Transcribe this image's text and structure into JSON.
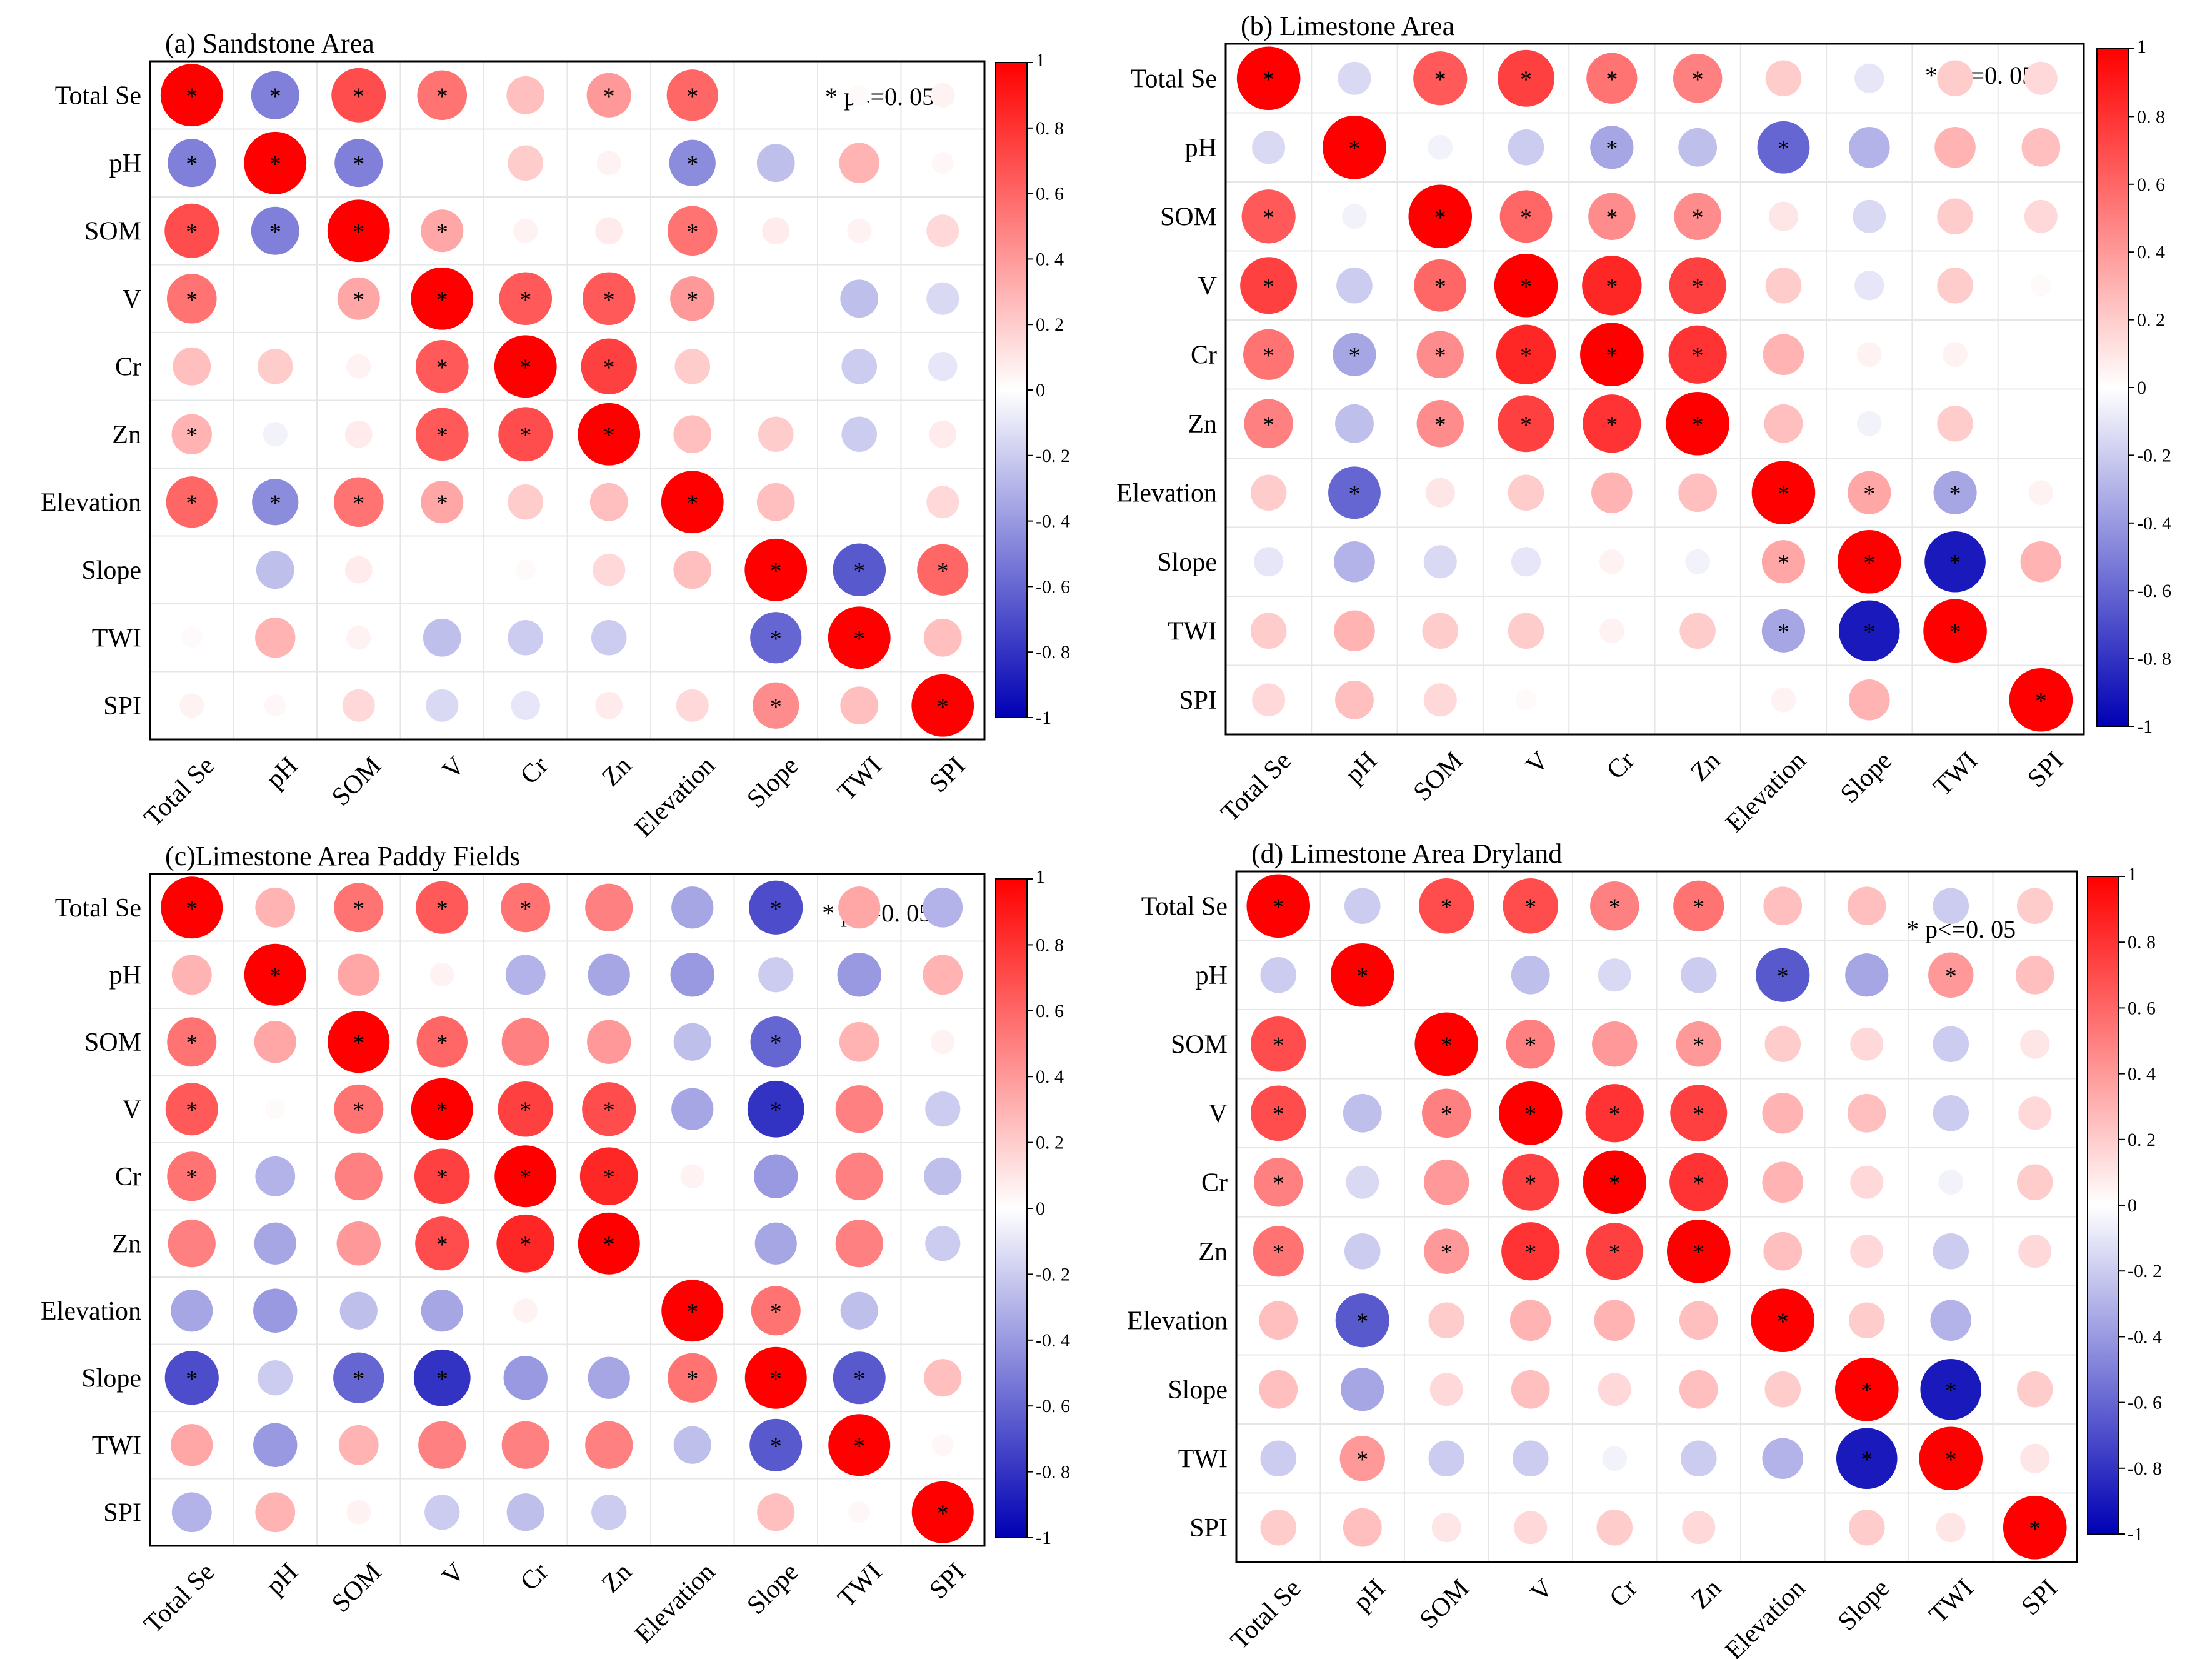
{
  "colors": {
    "positive": "#ff0000",
    "negative": "#0000b4",
    "neutral": "#ffffff",
    "marker": "#000000"
  },
  "chart_data": [
    {
      "type": "heatmap",
      "title": "(a) Sandstone Area",
      "legend_text": "* p<=0. 05",
      "variables": [
        "Total Se",
        "pH",
        "SOM",
        "V",
        "Cr",
        "Zn",
        "Elevation",
        "Slope",
        "TWI",
        "SPI"
      ],
      "colorbar": {
        "range": [
          -1,
          1
        ],
        "ticks": [
          "1",
          "0. 8",
          "0. 6",
          "0. 4",
          "0. 2",
          "0",
          "-0. 2",
          "-0. 4",
          "-0. 6",
          "-0. 8",
          "-1"
        ]
      },
      "matrix": [
        [
          1.0,
          -0.5,
          0.7,
          0.55,
          0.25,
          0.4,
          0.6,
          0.0,
          0.02,
          0.05
        ],
        [
          -0.5,
          1.0,
          -0.5,
          0.0,
          0.2,
          0.05,
          -0.45,
          -0.25,
          0.3,
          0.03
        ],
        [
          0.7,
          -0.5,
          1.0,
          0.35,
          0.05,
          0.08,
          0.55,
          0.08,
          0.05,
          0.15
        ],
        [
          0.55,
          0.0,
          0.35,
          1.0,
          0.65,
          0.65,
          0.4,
          0.0,
          -0.25,
          -0.15
        ],
        [
          0.25,
          0.2,
          0.05,
          0.65,
          1.0,
          0.75,
          0.2,
          0.0,
          -0.2,
          -0.1
        ],
        [
          0.3,
          -0.05,
          0.08,
          0.65,
          0.7,
          1.0,
          0.25,
          0.2,
          -0.2,
          0.08
        ],
        [
          0.6,
          -0.45,
          0.55,
          0.35,
          0.2,
          0.25,
          1.0,
          0.25,
          0.0,
          0.15
        ],
        [
          0.0,
          -0.25,
          0.08,
          0.0,
          0.02,
          0.15,
          0.25,
          1.0,
          -0.65,
          0.6
        ],
        [
          0.02,
          0.3,
          0.05,
          -0.25,
          -0.2,
          -0.2,
          0.0,
          -0.6,
          1.0,
          0.25
        ],
        [
          0.05,
          0.03,
          0.15,
          -0.15,
          -0.1,
          0.08,
          0.15,
          0.45,
          0.25,
          1.0
        ]
      ],
      "significant": [
        [
          1,
          1,
          1,
          1,
          0,
          1,
          1,
          0,
          0,
          0
        ],
        [
          1,
          1,
          1,
          0,
          0,
          0,
          1,
          0,
          0,
          0
        ],
        [
          1,
          1,
          1,
          1,
          0,
          0,
          1,
          0,
          0,
          0
        ],
        [
          1,
          0,
          1,
          1,
          1,
          1,
          1,
          0,
          0,
          0
        ],
        [
          0,
          0,
          0,
          1,
          1,
          1,
          0,
          0,
          0,
          0
        ],
        [
          1,
          0,
          0,
          1,
          1,
          1,
          0,
          0,
          0,
          0
        ],
        [
          1,
          1,
          1,
          1,
          0,
          0,
          1,
          0,
          0,
          0
        ],
        [
          0,
          0,
          0,
          0,
          0,
          0,
          0,
          1,
          1,
          1
        ],
        [
          0,
          0,
          0,
          0,
          0,
          0,
          0,
          1,
          1,
          0
        ],
        [
          0,
          0,
          0,
          0,
          0,
          0,
          0,
          1,
          0,
          1
        ]
      ]
    },
    {
      "type": "heatmap",
      "title": "(b) Limestone Area",
      "legend_text": "* p<=0. 05",
      "variables": [
        "Total Se",
        "pH",
        "SOM",
        "V",
        "Cr",
        "Zn",
        "Elevation",
        "Slope",
        "TWI",
        "SPI"
      ],
      "colorbar": {
        "range": [
          -1,
          1
        ],
        "ticks": [
          "1",
          "0. 8",
          "0. 6",
          "0. 4",
          "0. 2",
          "0",
          "-0. 2",
          "-0. 4",
          "-0. 6",
          "-0. 8",
          "-1"
        ]
      },
      "matrix": [
        [
          1.0,
          -0.15,
          0.65,
          0.75,
          0.55,
          0.5,
          0.2,
          -0.1,
          0.2,
          0.15
        ],
        [
          -0.15,
          1.0,
          -0.05,
          -0.2,
          -0.35,
          -0.25,
          -0.6,
          -0.3,
          0.3,
          0.25
        ],
        [
          0.65,
          -0.05,
          1.0,
          0.6,
          0.45,
          0.45,
          0.1,
          -0.15,
          0.2,
          0.15
        ],
        [
          0.75,
          -0.2,
          0.6,
          1.0,
          0.85,
          0.75,
          0.2,
          -0.1,
          0.2,
          0.02
        ],
        [
          0.55,
          -0.35,
          0.45,
          0.85,
          1.0,
          0.8,
          0.3,
          0.05,
          0.05,
          0.0
        ],
        [
          0.5,
          -0.25,
          0.45,
          0.75,
          0.8,
          1.0,
          0.25,
          -0.05,
          0.2,
          0.0
        ],
        [
          0.2,
          -0.6,
          0.1,
          0.2,
          0.3,
          0.25,
          1.0,
          0.35,
          -0.35,
          0.05
        ],
        [
          -0.1,
          -0.3,
          -0.15,
          -0.1,
          0.05,
          -0.05,
          0.35,
          1.0,
          -0.9,
          0.3
        ],
        [
          0.2,
          0.3,
          0.2,
          0.2,
          0.05,
          0.2,
          -0.35,
          -0.9,
          1.0,
          0.0
        ],
        [
          0.15,
          0.25,
          0.15,
          0.02,
          0.0,
          0.0,
          0.05,
          0.3,
          0.0,
          1.0
        ]
      ],
      "significant": [
        [
          1,
          0,
          1,
          1,
          1,
          1,
          0,
          0,
          0,
          0
        ],
        [
          0,
          1,
          0,
          0,
          1,
          0,
          1,
          0,
          0,
          0
        ],
        [
          1,
          0,
          1,
          1,
          1,
          1,
          0,
          0,
          0,
          0
        ],
        [
          1,
          0,
          1,
          1,
          1,
          1,
          0,
          0,
          0,
          0
        ],
        [
          1,
          1,
          1,
          1,
          1,
          1,
          0,
          0,
          0,
          0
        ],
        [
          1,
          0,
          1,
          1,
          1,
          1,
          0,
          0,
          0,
          0
        ],
        [
          0,
          1,
          0,
          0,
          0,
          0,
          1,
          1,
          1,
          0
        ],
        [
          0,
          0,
          0,
          0,
          0,
          0,
          1,
          1,
          1,
          0
        ],
        [
          0,
          0,
          0,
          0,
          0,
          0,
          1,
          1,
          1,
          0
        ],
        [
          0,
          0,
          0,
          0,
          0,
          0,
          0,
          0,
          0,
          1
        ]
      ]
    },
    {
      "type": "heatmap",
      "title": "(c)Limestone Area Paddy Fields",
      "legend_text": "* p<=0. 05",
      "variables": [
        "Total Se",
        "pH",
        "SOM",
        "V",
        "Cr",
        "Zn",
        "Elevation",
        "Slope",
        "TWI",
        "SPI"
      ],
      "colorbar": {
        "range": [
          -1,
          1
        ],
        "ticks": [
          "1",
          "0. 8",
          "0. 6",
          "0. 4",
          "0. 2",
          "0",
          "-0. 2",
          "-0. 4",
          "-0. 6",
          "-0. 8",
          "-1"
        ]
      },
      "matrix": [
        [
          1.0,
          0.3,
          0.55,
          0.65,
          0.55,
          0.5,
          -0.35,
          -0.7,
          0.35,
          -0.3
        ],
        [
          0.3,
          1.0,
          0.35,
          0.05,
          -0.3,
          -0.35,
          -0.4,
          -0.2,
          -0.4,
          0.3
        ],
        [
          0.55,
          0.35,
          1.0,
          0.6,
          0.5,
          0.4,
          -0.25,
          -0.6,
          0.3,
          0.05
        ],
        [
          0.65,
          0.02,
          0.55,
          1.0,
          0.75,
          0.7,
          -0.35,
          -0.8,
          0.5,
          -0.2
        ],
        [
          0.55,
          -0.3,
          0.5,
          0.75,
          1.0,
          0.85,
          0.05,
          -0.4,
          0.5,
          -0.25
        ],
        [
          0.5,
          -0.35,
          0.4,
          0.7,
          0.85,
          1.0,
          0.0,
          -0.35,
          0.5,
          -0.2
        ],
        [
          -0.35,
          -0.4,
          -0.25,
          -0.35,
          0.05,
          0.0,
          1.0,
          0.55,
          -0.25,
          0.0
        ],
        [
          -0.7,
          -0.2,
          -0.6,
          -0.8,
          -0.4,
          -0.35,
          0.55,
          1.0,
          -0.65,
          0.25
        ],
        [
          0.35,
          -0.4,
          0.3,
          0.5,
          0.5,
          0.5,
          -0.25,
          -0.65,
          1.0,
          0.03
        ],
        [
          -0.3,
          0.3,
          0.05,
          -0.2,
          -0.25,
          -0.2,
          0.0,
          0.25,
          0.03,
          1.0
        ]
      ],
      "significant": [
        [
          1,
          0,
          1,
          1,
          1,
          0,
          0,
          1,
          0,
          0
        ],
        [
          0,
          1,
          0,
          0,
          0,
          0,
          0,
          0,
          0,
          0
        ],
        [
          1,
          0,
          1,
          1,
          0,
          0,
          0,
          1,
          0,
          0
        ],
        [
          1,
          0,
          1,
          1,
          1,
          1,
          0,
          1,
          0,
          0
        ],
        [
          1,
          0,
          0,
          1,
          1,
          1,
          0,
          0,
          0,
          0
        ],
        [
          0,
          0,
          0,
          1,
          1,
          1,
          0,
          0,
          0,
          0
        ],
        [
          0,
          0,
          0,
          0,
          0,
          0,
          1,
          1,
          0,
          0
        ],
        [
          1,
          0,
          1,
          1,
          0,
          0,
          1,
          1,
          1,
          0
        ],
        [
          0,
          0,
          0,
          0,
          0,
          0,
          0,
          1,
          1,
          0
        ],
        [
          0,
          0,
          0,
          0,
          0,
          0,
          0,
          0,
          0,
          1
        ]
      ]
    },
    {
      "type": "heatmap",
      "title": "(d) Limestone Area Dryland",
      "legend_text": "* p<=0. 05",
      "variables": [
        "Total Se",
        "pH",
        "SOM",
        "V",
        "Cr",
        "Zn",
        "Elevation",
        "Slope",
        "TWI",
        "SPI"
      ],
      "colorbar": {
        "range": [
          -1,
          1
        ],
        "ticks": [
          "1",
          "0. 8",
          "0. 6",
          "0. 4",
          "0. 2",
          "0",
          "-0. 2",
          "-0. 4",
          "-0. 6",
          "-0. 8",
          "-1"
        ]
      },
      "matrix": [
        [
          1.0,
          -0.2,
          0.7,
          0.7,
          0.5,
          0.55,
          0.25,
          0.25,
          -0.2,
          0.2
        ],
        [
          -0.2,
          1.0,
          0.0,
          -0.25,
          -0.15,
          -0.2,
          -0.65,
          -0.35,
          0.4,
          0.25
        ],
        [
          0.7,
          0.0,
          1.0,
          0.5,
          0.4,
          0.4,
          0.2,
          0.15,
          -0.2,
          0.1
        ],
        [
          0.7,
          -0.25,
          0.5,
          1.0,
          0.8,
          0.75,
          0.3,
          0.25,
          -0.2,
          0.15
        ],
        [
          0.5,
          -0.15,
          0.4,
          0.75,
          1.0,
          0.8,
          0.3,
          0.15,
          -0.05,
          0.2
        ],
        [
          0.55,
          -0.2,
          0.4,
          0.8,
          0.75,
          1.0,
          0.25,
          0.15,
          -0.2,
          0.15
        ],
        [
          0.25,
          -0.65,
          0.2,
          0.3,
          0.3,
          0.25,
          1.0,
          0.2,
          -0.3,
          0.0
        ],
        [
          0.25,
          -0.35,
          0.15,
          0.25,
          0.15,
          0.25,
          0.2,
          1.0,
          -0.9,
          0.2
        ],
        [
          -0.2,
          0.4,
          -0.2,
          -0.2,
          -0.05,
          -0.2,
          -0.3,
          -0.9,
          1.0,
          0.1
        ],
        [
          0.2,
          0.25,
          0.1,
          0.15,
          0.2,
          0.15,
          0.0,
          0.2,
          0.1,
          1.0
        ]
      ],
      "significant": [
        [
          1,
          0,
          1,
          1,
          1,
          1,
          0,
          0,
          0,
          0
        ],
        [
          0,
          1,
          0,
          0,
          0,
          0,
          1,
          0,
          1,
          0
        ],
        [
          1,
          0,
          1,
          1,
          0,
          1,
          0,
          0,
          0,
          0
        ],
        [
          1,
          0,
          1,
          1,
          1,
          1,
          0,
          0,
          0,
          0
        ],
        [
          1,
          0,
          0,
          1,
          1,
          1,
          0,
          0,
          0,
          0
        ],
        [
          1,
          0,
          1,
          1,
          1,
          1,
          0,
          0,
          0,
          0
        ],
        [
          0,
          1,
          0,
          0,
          0,
          0,
          1,
          0,
          0,
          0
        ],
        [
          0,
          0,
          0,
          0,
          0,
          0,
          0,
          1,
          1,
          0
        ],
        [
          0,
          1,
          0,
          0,
          0,
          0,
          0,
          1,
          1,
          0
        ],
        [
          0,
          0,
          0,
          0,
          0,
          0,
          0,
          0,
          0,
          1
        ]
      ]
    }
  ]
}
